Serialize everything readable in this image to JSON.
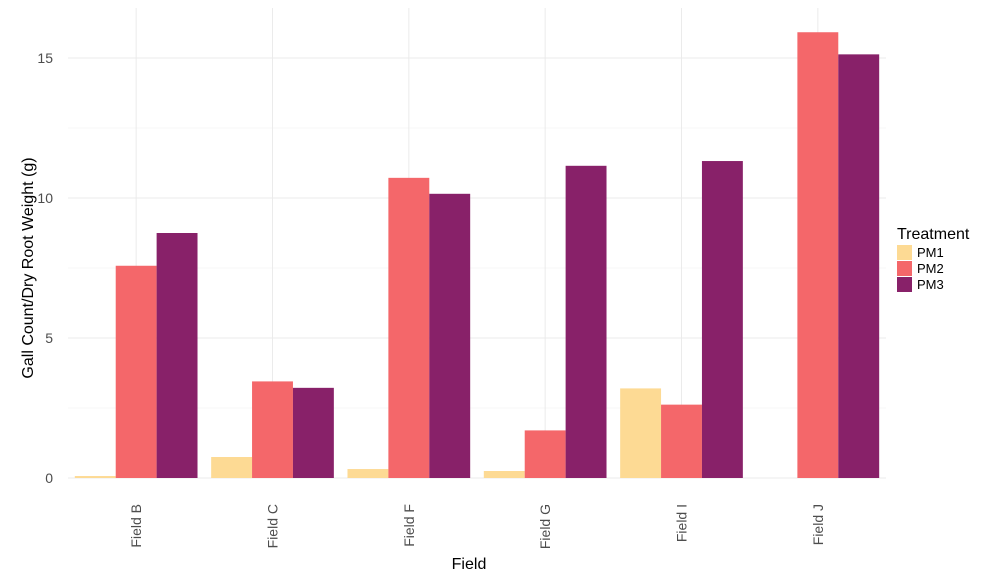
{
  "chart_data": {
    "type": "bar",
    "xlabel": "Field",
    "ylabel": "Gall Count/Dry Root Weight (g)",
    "categories": [
      "Field B",
      "Field C",
      "Field F",
      "Field G",
      "Field I",
      "Field J"
    ],
    "series": [
      {
        "name": "PM1",
        "color": "#FDDA94",
        "values": [
          0.07,
          0.75,
          0.32,
          0.25,
          3.2,
          0
        ]
      },
      {
        "name": "PM2",
        "color": "#F4676A",
        "values": [
          7.58,
          3.45,
          10.72,
          1.7,
          2.62,
          15.92
        ]
      },
      {
        "name": "PM3",
        "color": "#882169",
        "values": [
          8.75,
          3.22,
          10.15,
          11.15,
          11.32,
          15.13
        ]
      }
    ],
    "ylim": [
      0,
      16.2
    ],
    "yticks": [
      "0",
      "5",
      "10",
      "15"
    ],
    "legend_title": "Treatment",
    "legend_position": "right",
    "grid": true
  }
}
